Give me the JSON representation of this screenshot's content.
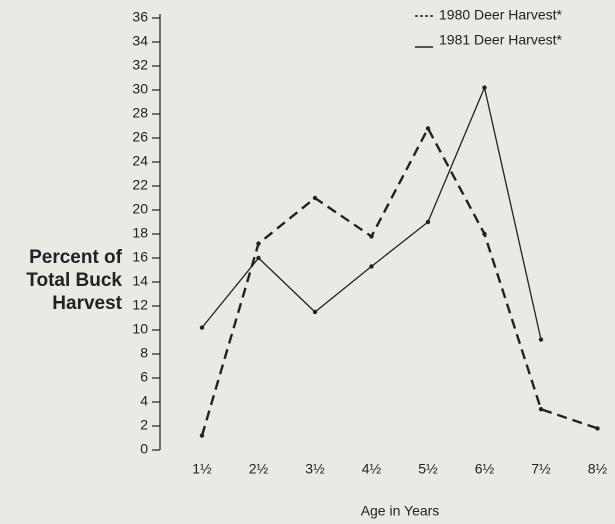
{
  "chart_data": {
    "type": "line",
    "x_label": "Age in Years",
    "y_label": "Percent of Total Buck Harvest",
    "categories": [
      "1½",
      "2½",
      "3½",
      "4½",
      "5½",
      "6½",
      "7½",
      "8½"
    ],
    "series": [
      {
        "name": "1980 Deer Harvest*",
        "color": "#222222",
        "linestyle": "dashed",
        "values": [
          1.2,
          17.2,
          21,
          17.8,
          26.8,
          18,
          3.4,
          1.8
        ]
      },
      {
        "name": "1981 Deer Harvest*",
        "color": "#222222",
        "linestyle": "solid",
        "values": [
          10.2,
          16,
          11.5,
          15.3,
          19,
          30.2,
          9.2,
          null
        ]
      }
    ],
    "ylim": [
      0,
      36
    ],
    "yticks": [
      0,
      2,
      4,
      6,
      8,
      10,
      12,
      14,
      16,
      18,
      20,
      22,
      24,
      26,
      28,
      30,
      32,
      34,
      36
    ],
    "legend": "upper right",
    "grid": false
  }
}
